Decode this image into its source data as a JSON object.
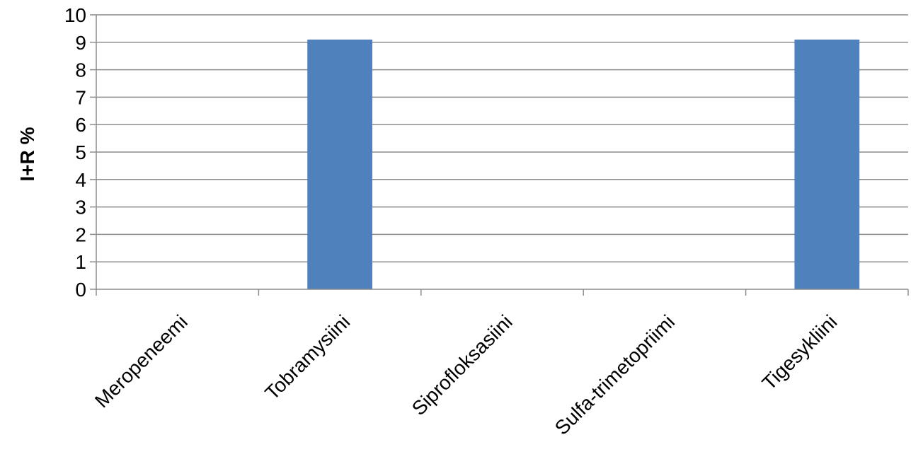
{
  "chart_data": {
    "type": "bar",
    "title": "",
    "xlabel": "",
    "ylabel": "I+R %",
    "categories": [
      "Meropeneemi",
      "Tobramysiini",
      "Siprofloksasiini",
      "Sulfa-trimetopriimi",
      "Tigesykliini"
    ],
    "values": [
      0,
      9.1,
      0,
      0,
      9.1
    ],
    "ylim": [
      0,
      10
    ],
    "yticks": [
      "0",
      "1",
      "2",
      "3",
      "4",
      "5",
      "6",
      "7",
      "8",
      "9",
      "10"
    ],
    "grid": true,
    "legend": "none",
    "colors": {
      "bar": "#4F81BD",
      "grid": "#8C8C8C",
      "axis": "#8C8C8C"
    }
  }
}
